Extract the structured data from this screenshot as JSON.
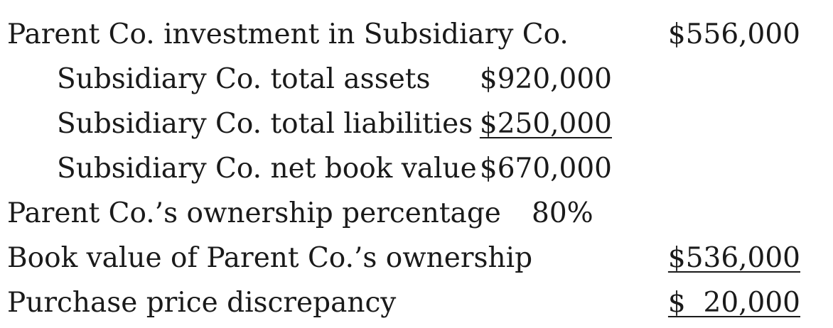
{
  "rows": [
    {
      "label": "Parent Co. investment in Subsidiary Co.",
      "mid": "",
      "right": "$556,000"
    },
    {
      "label": "Subsidiary Co. total assets",
      "mid": "$920,000",
      "right": ""
    },
    {
      "label": "Subsidiary Co. total liabilities",
      "mid": "$250,000",
      "right": ""
    },
    {
      "label": "Subsidiary Co. net book value",
      "mid": "$670,000",
      "right": ""
    },
    {
      "label": "Parent Co.’s ownership percentage",
      "mid": "80%",
      "right": ""
    },
    {
      "label": "Book value of Parent Co.’s ownership",
      "mid": "",
      "right": "$536,000"
    },
    {
      "label": "Purchase price discrepancy",
      "mid": "",
      "right": "$  20,000"
    }
  ]
}
